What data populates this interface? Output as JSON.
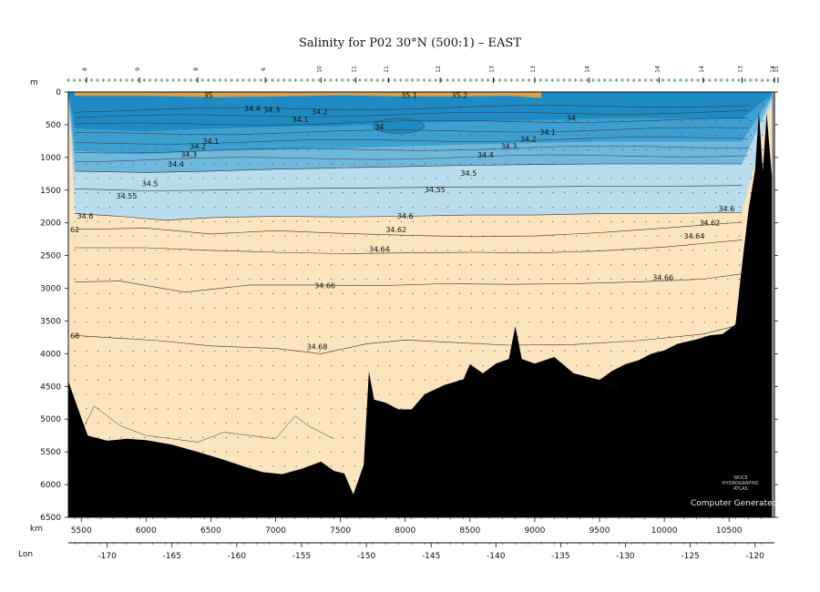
{
  "chart_data": {
    "type": "section",
    "title": "Salinity for P02 30°N (500:1) – EAST",
    "y_unit": "m",
    "x_unit": "km",
    "lon_label": "Lon",
    "x_range_km": [
      5400,
      10850
    ],
    "depth_range_m": [
      0,
      6500
    ],
    "x_ticks_km": [
      5500,
      6000,
      6500,
      7000,
      7500,
      8000,
      8500,
      9000,
      9500,
      10000,
      10500
    ],
    "depth_ticks_m": [
      0,
      500,
      1000,
      1500,
      2000,
      2500,
      3000,
      3500,
      4000,
      4500,
      5000,
      5500,
      6000,
      6500
    ],
    "lon_ticks": [
      {
        "lon": -170,
        "km": 5700
      },
      {
        "lon": -165,
        "km": 6200
      },
      {
        "lon": -160,
        "km": 6700
      },
      {
        "lon": -155,
        "km": 7200
      },
      {
        "lon": -150,
        "km": 7700
      },
      {
        "lon": -145,
        "km": 8200
      },
      {
        "lon": -140,
        "km": 8700
      },
      {
        "lon": -135,
        "km": 9200
      },
      {
        "lon": -130,
        "km": 9700
      },
      {
        "lon": -125,
        "km": 10200
      },
      {
        "lon": -120,
        "km": 10700
      }
    ],
    "color_bands": [
      {
        "from": 34.0,
        "to": 34.1,
        "color": "#1f8bc4"
      },
      {
        "from": 34.1,
        "to": 34.3,
        "color": "#3da0d1"
      },
      {
        "from": 34.3,
        "to": 34.5,
        "color": "#6fb8dd"
      },
      {
        "from": 34.5,
        "to": 34.6,
        "color": "#b9dcec"
      },
      {
        "from": 34.6,
        "to": 35.2,
        "color": "#fbe4be"
      }
    ],
    "surface_high_color": "#d8a04a",
    "bathymetry_color": "#000000",
    "contour_levels": [
      34.1,
      34.2,
      34.3,
      34.4,
      34.5,
      34.55,
      34.6,
      34.62,
      34.64,
      34.66,
      34.68
    ],
    "contours": [
      {
        "level": 34.5,
        "points": [
          [
            5450,
            1210
          ],
          [
            6000,
            1230
          ],
          [
            6500,
            1210
          ],
          [
            7000,
            1180
          ],
          [
            7500,
            1160
          ],
          [
            8000,
            1140
          ],
          [
            8500,
            1120
          ],
          [
            9000,
            1110
          ],
          [
            9500,
            1100
          ],
          [
            10000,
            1100
          ],
          [
            10500,
            1100
          ],
          [
            10600,
            1100
          ]
        ]
      },
      {
        "level": 34.55,
        "points": [
          [
            5450,
            1480
          ],
          [
            6000,
            1510
          ],
          [
            6500,
            1500
          ],
          [
            7000,
            1480
          ],
          [
            7500,
            1470
          ],
          [
            8000,
            1460
          ],
          [
            8500,
            1450
          ],
          [
            9000,
            1450
          ],
          [
            9500,
            1440
          ],
          [
            10000,
            1440
          ],
          [
            10600,
            1430
          ]
        ]
      },
      {
        "level": 34.6,
        "points": [
          [
            5450,
            1860
          ],
          [
            5800,
            1900
          ],
          [
            6150,
            1960
          ],
          [
            6500,
            1920
          ],
          [
            7000,
            1900
          ],
          [
            7500,
            1910
          ],
          [
            8000,
            1900
          ],
          [
            8500,
            1880
          ],
          [
            9000,
            1880
          ],
          [
            9500,
            1860
          ],
          [
            10000,
            1860
          ],
          [
            10600,
            1840
          ]
        ]
      },
      {
        "level": 34.62,
        "points": [
          [
            5450,
            2100
          ],
          [
            6000,
            2080
          ],
          [
            6500,
            2170
          ],
          [
            7000,
            2120
          ],
          [
            7500,
            2160
          ],
          [
            8000,
            2190
          ],
          [
            8500,
            2210
          ],
          [
            9000,
            2200
          ],
          [
            9500,
            2150
          ],
          [
            10000,
            2080
          ],
          [
            10600,
            1990
          ]
        ]
      },
      {
        "level": 34.64,
        "points": [
          [
            5450,
            2380
          ],
          [
            6000,
            2380
          ],
          [
            6500,
            2420
          ],
          [
            7000,
            2450
          ],
          [
            7500,
            2470
          ],
          [
            8000,
            2460
          ],
          [
            8500,
            2450
          ],
          [
            9000,
            2460
          ],
          [
            9500,
            2430
          ],
          [
            10000,
            2370
          ],
          [
            10600,
            2260
          ]
        ]
      },
      {
        "level": 34.66,
        "points": [
          [
            5450,
            2900
          ],
          [
            5800,
            2890
          ],
          [
            6300,
            3060
          ],
          [
            6800,
            2950
          ],
          [
            7300,
            2950
          ],
          [
            7800,
            2960
          ],
          [
            8300,
            2930
          ],
          [
            8800,
            2940
          ],
          [
            9300,
            2930
          ],
          [
            9800,
            2900
          ],
          [
            10300,
            2860
          ],
          [
            10600,
            2780
          ]
        ]
      },
      {
        "level": 34.68,
        "points": [
          [
            5450,
            3720
          ],
          [
            5750,
            3760
          ],
          [
            6100,
            3800
          ],
          [
            6500,
            3880
          ],
          [
            7000,
            3920
          ],
          [
            7350,
            4000
          ],
          [
            7700,
            3850
          ],
          [
            8000,
            3790
          ],
          [
            8400,
            3830
          ],
          [
            8800,
            3870
          ],
          [
            9300,
            3860
          ],
          [
            9800,
            3800
          ],
          [
            10300,
            3700
          ],
          [
            10600,
            3550
          ]
        ]
      }
    ],
    "bathymetry": [
      [
        5400,
        4420
      ],
      [
        5450,
        4700
      ],
      [
        5550,
        5250
      ],
      [
        5700,
        5330
      ],
      [
        5850,
        5300
      ],
      [
        6000,
        5320
      ],
      [
        6200,
        5390
      ],
      [
        6400,
        5500
      ],
      [
        6600,
        5620
      ],
      [
        6750,
        5720
      ],
      [
        6900,
        5810
      ],
      [
        7050,
        5840
      ],
      [
        7200,
        5760
      ],
      [
        7350,
        5650
      ],
      [
        7450,
        5790
      ],
      [
        7530,
        5830
      ],
      [
        7600,
        6150
      ],
      [
        7680,
        5700
      ],
      [
        7720,
        4270
      ],
      [
        7760,
        4700
      ],
      [
        7850,
        4750
      ],
      [
        7950,
        4850
      ],
      [
        8050,
        4850
      ],
      [
        8150,
        4620
      ],
      [
        8300,
        4480
      ],
      [
        8450,
        4390
      ],
      [
        8500,
        4160
      ],
      [
        8600,
        4300
      ],
      [
        8700,
        4150
      ],
      [
        8800,
        4080
      ],
      [
        8850,
        3580
      ],
      [
        8900,
        4080
      ],
      [
        9000,
        4150
      ],
      [
        9150,
        4050
      ],
      [
        9300,
        4300
      ],
      [
        9500,
        4400
      ],
      [
        9600,
        4260
      ],
      [
        9700,
        4160
      ],
      [
        9800,
        4100
      ],
      [
        9900,
        4000
      ],
      [
        10000,
        3950
      ],
      [
        10100,
        3850
      ],
      [
        10250,
        3780
      ],
      [
        10350,
        3720
      ],
      [
        10450,
        3700
      ],
      [
        10550,
        3550
      ],
      [
        10600,
        2650
      ],
      [
        10650,
        1800
      ],
      [
        10700,
        1200
      ],
      [
        10730,
        300
      ],
      [
        10760,
        1200
      ],
      [
        10790,
        330
      ],
      [
        10830,
        1300
      ],
      [
        10850,
        1300
      ]
    ],
    "labels": [
      {
        "text": "35",
        "x": 6480,
        "y": 50
      },
      {
        "text": "34.4",
        "x": 6820,
        "y": 250
      },
      {
        "text": "34.3",
        "x": 6970,
        "y": 270
      },
      {
        "text": "34.2",
        "x": 7340,
        "y": 300
      },
      {
        "text": "34.1",
        "x": 7190,
        "y": 420
      },
      {
        "text": "34",
        "x": 7800,
        "y": 530
      },
      {
        "text": "35.1",
        "x": 8030,
        "y": 50
      },
      {
        "text": "35.2",
        "x": 8420,
        "y": 50
      },
      {
        "text": "34",
        "x": 9280,
        "y": 400
      },
      {
        "text": "34.1",
        "x": 9100,
        "y": 610
      },
      {
        "text": "34.2",
        "x": 8950,
        "y": 720
      },
      {
        "text": "34.3",
        "x": 8800,
        "y": 830
      },
      {
        "text": "34.4",
        "x": 8620,
        "y": 960
      },
      {
        "text": "34.1",
        "x": 6500,
        "y": 750
      },
      {
        "text": "34.2",
        "x": 6400,
        "y": 830
      },
      {
        "text": "34.3",
        "x": 6330,
        "y": 950
      },
      {
        "text": "34.4",
        "x": 6230,
        "y": 1100
      },
      {
        "text": "34.5",
        "x": 6030,
        "y": 1400
      },
      {
        "text": "34.5",
        "x": 8490,
        "y": 1240
      },
      {
        "text": "34.55",
        "x": 5850,
        "y": 1590
      },
      {
        "text": "34.55",
        "x": 8230,
        "y": 1490
      },
      {
        "text": "34.6",
        "x": 5530,
        "y": 1890
      },
      {
        "text": "34.6",
        "x": 8000,
        "y": 1890
      },
      {
        "text": "34.6",
        "x": 10480,
        "y": 1780
      },
      {
        "text": "62",
        "x": 5450,
        "y": 2100
      },
      {
        "text": "34.62",
        "x": 7930,
        "y": 2100
      },
      {
        "text": "34.62",
        "x": 10350,
        "y": 2000
      },
      {
        "text": "34.64",
        "x": 7800,
        "y": 2400
      },
      {
        "text": "34.64",
        "x": 10230,
        "y": 2200
      },
      {
        "text": "34.66",
        "x": 7380,
        "y": 2960
      },
      {
        "text": "34.66",
        "x": 9990,
        "y": 2830
      },
      {
        "text": "68",
        "x": 5450,
        "y": 3720
      },
      {
        "text": "34.68",
        "x": 7320,
        "y": 3890
      },
      {
        "text": "34.6",
        "x": 9590,
        "y": 4480
      }
    ],
    "station_markers": [
      {
        "id": "8",
        "km": 5540
      },
      {
        "id": "9",
        "km": 5950
      },
      {
        "id": "8",
        "km": 6400
      },
      {
        "id": "6",
        "km": 6920
      },
      {
        "id": "10",
        "km": 7350
      },
      {
        "id": "11",
        "km": 7620
      },
      {
        "id": "11",
        "km": 7870
      },
      {
        "id": "12",
        "km": 8270
      },
      {
        "id": "13",
        "km": 8680
      },
      {
        "id": "13",
        "km": 9000
      },
      {
        "id": "14",
        "km": 9420
      },
      {
        "id": "14",
        "km": 9960
      },
      {
        "id": "14",
        "km": 10300
      },
      {
        "id": "13",
        "km": 10600
      },
      {
        "id": "14",
        "km": 10850
      },
      {
        "id": "15",
        "km": 10920
      }
    ]
  },
  "credits": {
    "logo_lines": [
      "WOCE",
      "HYDROGRAPHIC",
      "ATLAS"
    ],
    "computer_generated": "Computer Generated"
  }
}
